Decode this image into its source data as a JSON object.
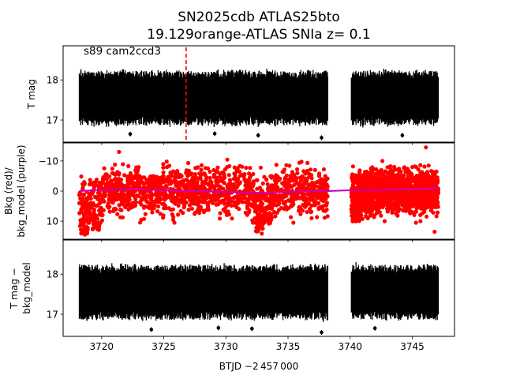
{
  "figure": {
    "title_line1": "SN2025cdb  ATLAS25bto",
    "title_line2": "19.129orange-ATLAS SNIa z= 0.1"
  },
  "chart_data": [
    {
      "type": "scatter",
      "panel": "top",
      "ylabel": "T mag",
      "yaxis_inverted": true,
      "xlim": [
        3716.9,
        3748.4
      ],
      "ylim": [
        18.85,
        16.45
      ],
      "yticks": [
        17,
        18
      ],
      "annotation": "s89 cam2ccd3",
      "marker_line": {
        "x": 3726.8,
        "style": "dashed",
        "color": "#ff0000"
      },
      "series": [
        {
          "color": "#000000",
          "segments": [
            {
              "x_start": 3718.2,
              "x_end": 3738.2,
              "center": 17.55,
              "spread": 0.62,
              "outliers": [
                [
                  3722.3,
                  16.65
                ],
                [
                  3729.1,
                  16.66
                ],
                [
                  3732.6,
                  16.62
                ],
                [
                  3737.7,
                  16.56
                ]
              ]
            },
            {
              "x_start": 3740.1,
              "x_end": 3747.1,
              "center": 17.55,
              "spread": 0.62,
              "outliers": [
                [
                  3744.2,
                  16.62
                ]
              ]
            }
          ]
        }
      ]
    },
    {
      "type": "scatter",
      "panel": "middle",
      "ylabel_lines": [
        "Bkg (red)/",
        "bkg_model (purple)"
      ],
      "xlim": [
        3716.9,
        3748.4
      ],
      "ylim": [
        -16.0,
        16.0
      ],
      "yticks": [
        -10,
        0,
        10
      ],
      "series": [
        {
          "name": "Bkg",
          "color": "#ff0000",
          "segments": [
            {
              "x_start": 3718.2,
              "x_end": 3738.2,
              "low": -7.5,
              "high": 7.5,
              "features": [
                [
                  3718.6,
                  14.5
                ],
                [
                  3719.5,
                  13.0
                ],
                [
                  3732.7,
                  14.5
                ],
                [
                  3733.3,
                  11.5
                ]
              ],
              "outliers": [
                [
                  3721.4,
                  -13.0
                ],
                [
                  3736.9,
                  9.0
                ]
              ]
            },
            {
              "x_start": 3740.1,
              "x_end": 3747.1,
              "low": -7.0,
              "high": 7.0,
              "features": [
                [
                  3740.4,
                  10.0
                ]
              ],
              "outliers": [
                [
                  3746.8,
                  13.5
                ],
                [
                  3746.1,
                  -14.5
                ],
                [
                  3745.3,
                  10.5
                ]
              ]
            }
          ]
        },
        {
          "name": "bkg_model",
          "color": "#c000c0",
          "line": [
            [
              3718.2,
              0.0
            ],
            [
              3720.0,
              -0.4
            ],
            [
              3722.0,
              -0.6
            ],
            [
              3725.0,
              -0.3
            ],
            [
              3728.0,
              0.1
            ],
            [
              3731.0,
              0.4
            ],
            [
              3733.0,
              0.6
            ],
            [
              3735.0,
              0.3
            ],
            [
              3738.2,
              0.0
            ],
            [
              3740.1,
              -0.3
            ],
            [
              3743.0,
              -0.4
            ],
            [
              3745.0,
              -0.6
            ],
            [
              3747.1,
              -1.0
            ]
          ]
        }
      ]
    },
    {
      "type": "scatter",
      "panel": "bottom",
      "ylabel_lines": [
        "T mag −",
        "bkg_model"
      ],
      "yaxis_inverted": true,
      "xlim": [
        3716.9,
        3748.4
      ],
      "ylim": [
        18.85,
        16.45
      ],
      "yticks": [
        17,
        18
      ],
      "xticks": [
        3720,
        3725,
        3730,
        3735,
        3740,
        3745
      ],
      "xlabel": "BTJD −2 457 000",
      "series": [
        {
          "color": "#000000",
          "segments": [
            {
              "x_start": 3718.2,
              "x_end": 3738.2,
              "center": 17.55,
              "spread": 0.62,
              "outliers": [
                [
                  3724.0,
                  16.62
                ],
                [
                  3729.4,
                  16.66
                ],
                [
                  3732.1,
                  16.64
                ],
                [
                  3737.7,
                  16.55
                ]
              ]
            },
            {
              "x_start": 3740.1,
              "x_end": 3747.1,
              "center": 17.55,
              "spread": 0.62,
              "outliers": [
                [
                  3742.0,
                  16.65
                ]
              ]
            }
          ]
        }
      ]
    }
  ]
}
